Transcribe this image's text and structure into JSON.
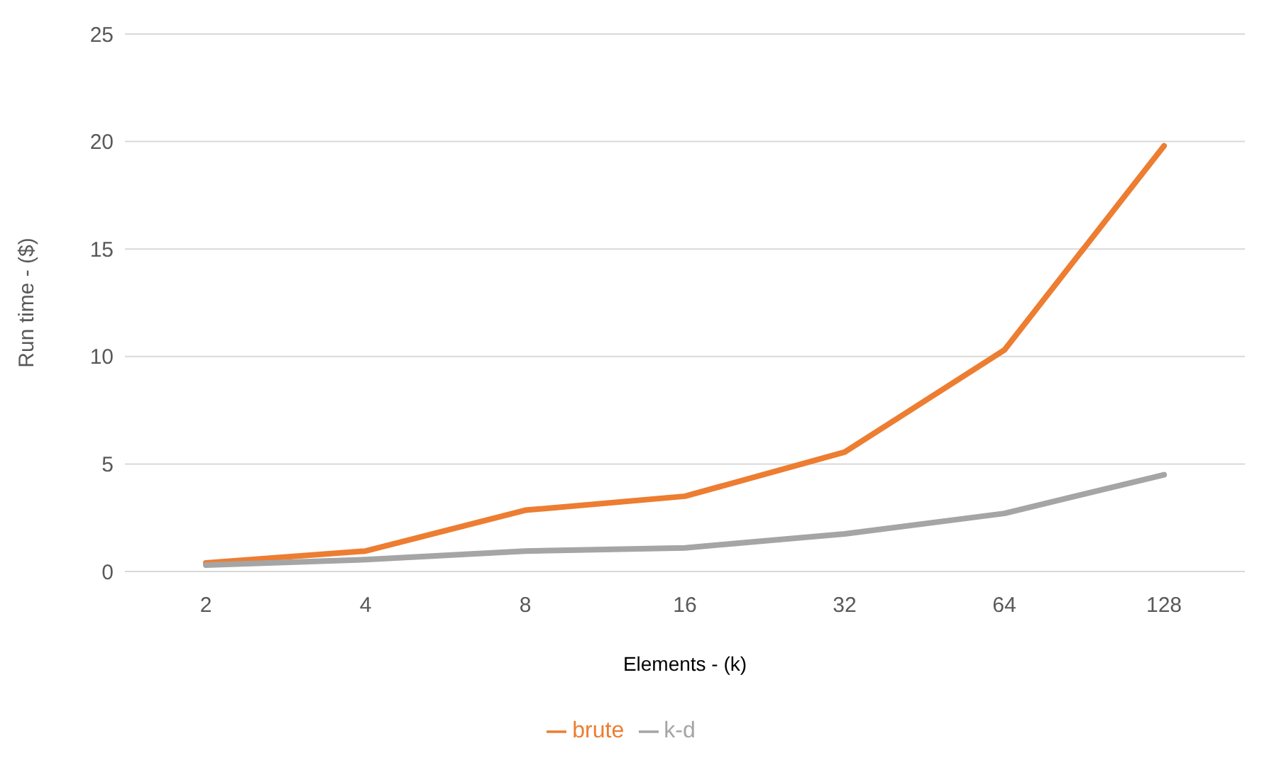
{
  "chart_data": {
    "type": "line",
    "xlabel": "Elements - (k)",
    "ylabel": "Run time - ($)",
    "categories": [
      "2",
      "4",
      "8",
      "16",
      "32",
      "64",
      "128"
    ],
    "series": [
      {
        "name": "brute",
        "color": "#ed7d31",
        "values": [
          0.4,
          0.95,
          2.85,
          3.5,
          5.55,
          10.3,
          19.8
        ]
      },
      {
        "name": "k-d",
        "color": "#a5a5a5",
        "values": [
          0.3,
          0.55,
          0.95,
          1.1,
          1.75,
          2.7,
          4.5
        ]
      }
    ],
    "ylim": [
      0,
      25
    ],
    "yticks": [
      0,
      5,
      10,
      15,
      20,
      25
    ],
    "grid": "y",
    "legend": "bottom",
    "line_style": "solid"
  }
}
